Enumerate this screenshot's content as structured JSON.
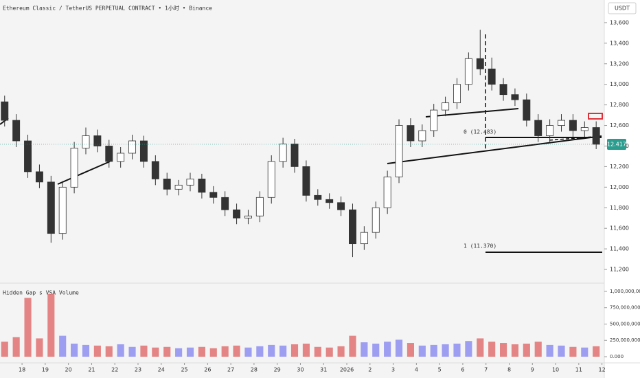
{
  "chart_data": [
    {
      "type": "candlestick",
      "title": "Ethereum Classic / TetherUS PERPETUAL CONTRACT • 1小时 • Binance",
      "axis_unit": "USDT",
      "up_color": "#ffffff",
      "down_color": "#333333",
      "wick_color": "#333333",
      "x": [
        -0.75,
        -0.25,
        0.25,
        0.75,
        1.25,
        1.75,
        2.25,
        2.75,
        3.25,
        3.75,
        4.25,
        4.75,
        5.25,
        5.75,
        6.25,
        6.75,
        7.25,
        7.75,
        8.25,
        8.75,
        9.25,
        9.75,
        10.25,
        10.75,
        11.25,
        11.75,
        12.25,
        12.75,
        13.25,
        13.75,
        14.25,
        14.75,
        15.25,
        15.75,
        16.25,
        16.75,
        17.25,
        17.75,
        18.25,
        18.75,
        19.25,
        19.75,
        20.25,
        20.75,
        21.25,
        21.75,
        22.25,
        22.75,
        23.25,
        23.75,
        24.25,
        24.75
      ],
      "open": [
        12830,
        12650,
        12450,
        12150,
        12050,
        11550,
        12000,
        12380,
        12500,
        12400,
        12250,
        12330,
        12450,
        12250,
        12080,
        11980,
        12020,
        12080,
        11950,
        11900,
        11780,
        11700,
        11720,
        11900,
        12250,
        12420,
        12200,
        11920,
        11880,
        11850,
        11780,
        11450,
        11560,
        11800,
        12100,
        12600,
        12450,
        12550,
        12750,
        12820,
        13000,
        13250,
        13150,
        13000,
        12900,
        12850,
        12650,
        12500,
        12600,
        12650,
        12550,
        12580
      ],
      "high": [
        12890,
        12710,
        12510,
        12220,
        12110,
        12060,
        12440,
        12580,
        12560,
        12460,
        12390,
        12510,
        12500,
        12310,
        12140,
        12070,
        12140,
        12130,
        12010,
        11960,
        11840,
        11780,
        11960,
        12310,
        12480,
        12470,
        12260,
        11980,
        11940,
        11910,
        11840,
        11620,
        11860,
        12160,
        12660,
        12670,
        12610,
        12810,
        12880,
        13060,
        13310,
        13530,
        13260,
        13060,
        12960,
        12910,
        12710,
        12660,
        12710,
        12710,
        12640,
        12640
      ],
      "low": [
        12590,
        12390,
        12090,
        11990,
        11460,
        11490,
        11940,
        12320,
        12340,
        12190,
        12190,
        12270,
        12190,
        12020,
        11920,
        11920,
        11960,
        11890,
        11840,
        11720,
        11640,
        11640,
        11660,
        11840,
        12190,
        12140,
        11860,
        11820,
        11790,
        11720,
        11320,
        11390,
        11500,
        11740,
        12040,
        12390,
        12390,
        12490,
        12690,
        12760,
        12940,
        13090,
        12940,
        12840,
        12790,
        12590,
        12440,
        12440,
        12540,
        12490,
        12490,
        12370
      ],
      "close": [
        12650,
        12450,
        12150,
        12050,
        11550,
        12000,
        12380,
        12500,
        12400,
        12250,
        12330,
        12450,
        12250,
        12080,
        11980,
        12020,
        12080,
        11950,
        11900,
        11780,
        11700,
        11720,
        11900,
        12250,
        12420,
        12200,
        11920,
        11880,
        11850,
        11780,
        11450,
        11560,
        11800,
        12100,
        12600,
        12450,
        12550,
        12750,
        12820,
        13000,
        13250,
        13150,
        13000,
        12900,
        12850,
        12650,
        12500,
        12600,
        12650,
        12550,
        12580,
        12417
      ],
      "xlim": [
        -0.95,
        25.1
      ],
      "ylim": [
        11080,
        13820
      ],
      "xticks": [
        {
          "value": 0,
          "label": "18"
        },
        {
          "value": 1,
          "label": "19"
        },
        {
          "value": 2,
          "label": "20"
        },
        {
          "value": 3,
          "label": "21"
        },
        {
          "value": 4,
          "label": "22"
        },
        {
          "value": 5,
          "label": "23"
        },
        {
          "value": 6,
          "label": "24"
        },
        {
          "value": 7,
          "label": "25"
        },
        {
          "value": 8,
          "label": "26"
        },
        {
          "value": 9,
          "label": "27"
        },
        {
          "value": 10,
          "label": "28"
        },
        {
          "value": 11,
          "label": "29"
        },
        {
          "value": 12,
          "label": "30"
        },
        {
          "value": 13,
          "label": "31"
        },
        {
          "value": 14,
          "label": "2026"
        },
        {
          "value": 15,
          "label": "2"
        },
        {
          "value": 16,
          "label": "3"
        },
        {
          "value": 17,
          "label": "4"
        },
        {
          "value": 18,
          "label": "5"
        },
        {
          "value": 19,
          "label": "6"
        },
        {
          "value": 20,
          "label": "7"
        },
        {
          "value": 21,
          "label": "8"
        },
        {
          "value": 22,
          "label": "9"
        },
        {
          "value": 23,
          "label": "10"
        },
        {
          "value": 24,
          "label": "11"
        },
        {
          "value": 25,
          "label": "12"
        }
      ],
      "yticks": [
        {
          "value": 11200,
          "label": "11,200"
        },
        {
          "value": 11400,
          "label": "11,400"
        },
        {
          "value": 11600,
          "label": "11,600"
        },
        {
          "value": 11800,
          "label": "11,800"
        },
        {
          "value": 12000,
          "label": "12,000"
        },
        {
          "value": 12200,
          "label": "12,200"
        },
        {
          "value": 12400,
          "label": "12,400"
        },
        {
          "value": 12600,
          "label": "12,600"
        },
        {
          "value": 12800,
          "label": "12,800"
        },
        {
          "value": 13000,
          "label": "13,000"
        },
        {
          "value": 13200,
          "label": "13,200"
        },
        {
          "value": 13400,
          "label": "13,400"
        },
        {
          "value": 13600,
          "label": "13,600"
        }
      ],
      "price_tag": "12.417",
      "fib_labels": [
        "0 (12.483)",
        "1 (11.370)"
      ]
    },
    {
      "type": "bar",
      "title": "Hidden Gap s VSA Volume",
      "up_color": "#8d8df0",
      "down_color": "#e07070",
      "values": [
        230000000,
        300000000,
        900000000,
        280000000,
        960000000,
        320000000,
        200000000,
        180000000,
        170000000,
        160000000,
        190000000,
        150000000,
        170000000,
        140000000,
        150000000,
        130000000,
        140000000,
        150000000,
        130000000,
        160000000,
        170000000,
        140000000,
        160000000,
        180000000,
        170000000,
        190000000,
        200000000,
        150000000,
        140000000,
        160000000,
        320000000,
        220000000,
        200000000,
        230000000,
        260000000,
        210000000,
        170000000,
        180000000,
        190000000,
        200000000,
        240000000,
        280000000,
        230000000,
        210000000,
        190000000,
        200000000,
        230000000,
        180000000,
        170000000,
        150000000,
        140000000,
        160000000
      ],
      "ylim": [
        0,
        1126000000
      ],
      "yticks": [
        {
          "value": 0,
          "label": "0.000"
        },
        {
          "value": 250000000,
          "label": "250,000,000"
        },
        {
          "value": 500000000,
          "label": "500,000,000"
        },
        {
          "value": 750000000,
          "label": "750,000,000"
        },
        {
          "value": 1000000000,
          "label": "1,000,000,000"
        }
      ]
    }
  ]
}
